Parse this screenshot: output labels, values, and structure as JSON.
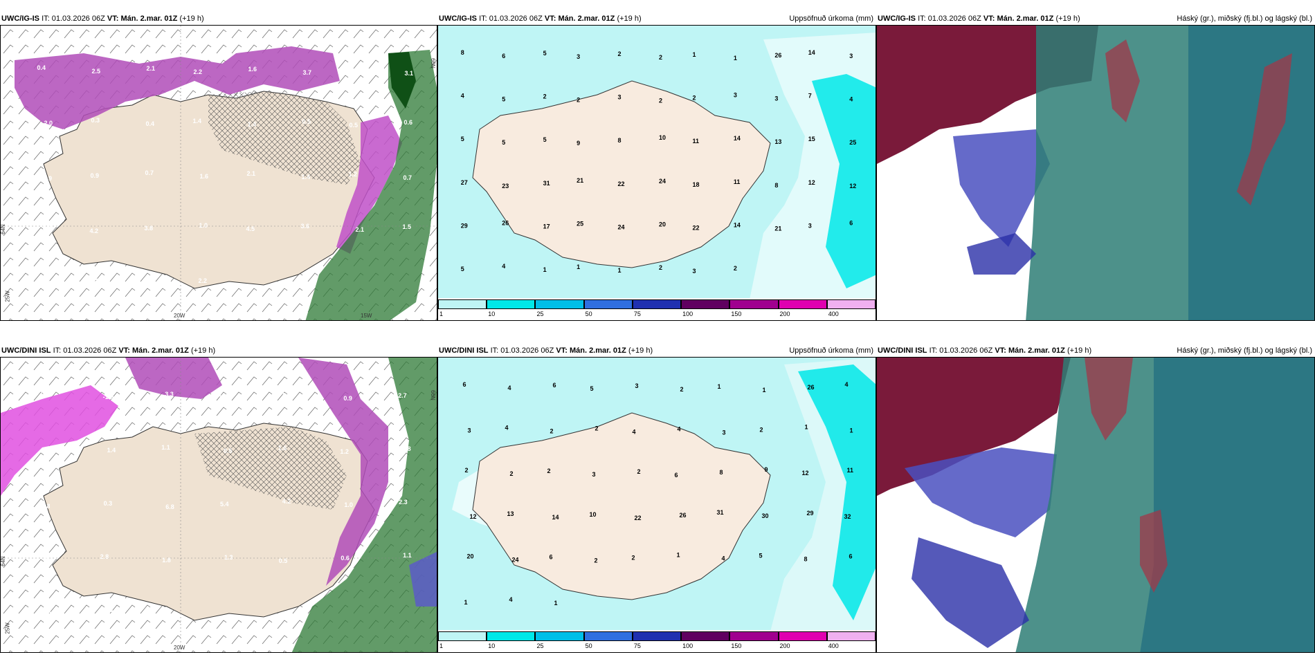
{
  "rows": [
    {
      "model": "UWC/IG-IS",
      "init_label": "IT:",
      "init_value": "01.03.2026 06Z",
      "valid_label": "VT:",
      "valid_value": "Mán. 2.mar. 01Z",
      "lead": "(+19 h)"
    },
    {
      "model": "UWC/DINI ISL",
      "init_label": "IT:",
      "init_value": "01.03.2026 06Z",
      "valid_label": "VT:",
      "valid_value": "Mán. 2.mar. 01Z",
      "lead": "(+19 h)"
    }
  ],
  "panel_titles": {
    "precip": "Uppsöfnuð úrkoma (mm)",
    "clouds": "Háský (gr.), miðský (fj.bl.) og lágský (bl.)"
  },
  "axis_labels": {
    "lon_20w": "20W",
    "lon_15w": "15W",
    "lon_25w": "25W",
    "lat_66n": "66N",
    "lat_64n": "64N"
  },
  "colorbar": {
    "labels": [
      "1",
      "10",
      "25",
      "50",
      "75",
      "100",
      "150",
      "200",
      "400"
    ],
    "colors": [
      "#bff5f5",
      "#00e8e8",
      "#00bfe8",
      "#2f6fe0",
      "#2030b0",
      "#600060",
      "#a0008f",
      "#e000b0",
      "#f0b0f0"
    ]
  },
  "precip_top_values": [
    "8",
    "6",
    "5",
    "3",
    "2",
    "2",
    "1",
    "1",
    "26",
    "14",
    "3",
    "4",
    "5",
    "2",
    "2",
    "3",
    "2",
    "2",
    "3",
    "3",
    "7",
    "4",
    "5",
    "5",
    "5",
    "9",
    "8",
    "10",
    "11",
    "14",
    "13",
    "15",
    "25",
    "27",
    "23",
    "31",
    "21",
    "22",
    "24",
    "18",
    "11",
    "8",
    "12",
    "12",
    "29",
    "26",
    "17",
    "25",
    "24",
    "20",
    "22",
    "14",
    "21",
    "3",
    "6",
    "5",
    "4",
    "1",
    "1",
    "1",
    "2",
    "3",
    "2"
  ],
  "precip_bottom_values": [
    "6",
    "4",
    "6",
    "5",
    "3",
    "2",
    "1",
    "1",
    "26",
    "4",
    "3",
    "4",
    "2",
    "2",
    "4",
    "4",
    "3",
    "2",
    "1",
    "1",
    "2",
    "2",
    "2",
    "3",
    "2",
    "6",
    "8",
    "9",
    "12",
    "11",
    "12",
    "13",
    "14",
    "10",
    "22",
    "26",
    "31",
    "30",
    "29",
    "32",
    "20",
    "24",
    "6",
    "2",
    "2",
    "1",
    "4",
    "5",
    "8",
    "6",
    "1",
    "4",
    "1"
  ],
  "wind_top_values": [
    "0.4",
    "2.5",
    "2.1",
    "2.2",
    "1.6",
    "3.7",
    "1.5",
    "3.1",
    "2.0",
    "0.3",
    "0.4",
    "1.4",
    "1.4",
    "0.5",
    "0.5",
    "0.6",
    "1.9",
    "0.9",
    "0.7",
    "1.6",
    "2.1",
    "1.4",
    "1.2",
    "0.7",
    "1.0",
    "4.2",
    "3.8",
    "1.0",
    "4.5",
    "3.6",
    "2.1",
    "1.5",
    "4.9",
    "0.8",
    "0.3",
    "2.2"
  ],
  "wind_bottom_values": [
    "0.3",
    "-1.0",
    "3.3",
    "2.0",
    "1.7",
    "0.9",
    "2.7",
    "0.4",
    "1.4",
    "1.1",
    "0.5",
    "1.6",
    "1.2",
    "0.8",
    "1.8",
    "0.3",
    "6.8",
    "5.4",
    "4.2",
    "1.0",
    "2.3",
    "2.5",
    "2.8",
    "1.8",
    "1.3",
    "0.5",
    "0.6",
    "1.1",
    "2.0",
    "0.6"
  ]
}
